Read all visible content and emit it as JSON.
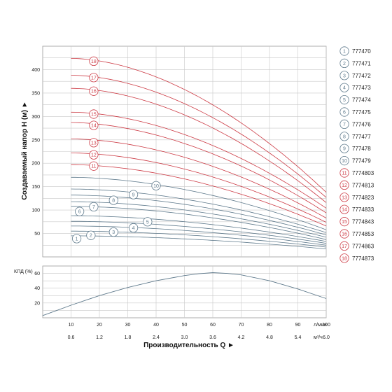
{
  "chart_data": [
    {
      "type": "line",
      "ylabel": "Создаваемый напор H (м) ►",
      "ylim": [
        0,
        450
      ],
      "yticks": [
        50,
        100,
        150,
        200,
        250,
        300,
        350,
        400
      ],
      "xlim": [
        0,
        100
      ],
      "grid": true,
      "legend_position": "right",
      "colors": {
        "low": "#5f7a8c",
        "high": "#cc3a44"
      },
      "series": [
        {
          "name": "777470",
          "label": "1",
          "shutoff": 45,
          "end": 17,
          "label_x": 12,
          "label_y": 39
        },
        {
          "name": "777471",
          "label": "2",
          "shutoff": 55,
          "end": 21,
          "label_x": 17,
          "label_y": 46
        },
        {
          "name": "777472",
          "label": "3",
          "shutoff": 66,
          "end": 25,
          "label_x": 25,
          "label_y": 53
        },
        {
          "name": "777473",
          "label": "4",
          "shutoff": 76,
          "end": 29,
          "label_x": 32,
          "label_y": 62
        },
        {
          "name": "777474",
          "label": "5",
          "shutoff": 88,
          "end": 33,
          "label_x": 37,
          "label_y": 75
        },
        {
          "name": "777475",
          "label": "6",
          "shutoff": 108,
          "end": 37,
          "label_x": 13,
          "label_y": 97
        },
        {
          "name": "777476",
          "label": "7",
          "shutoff": 118,
          "end": 42,
          "label_x": 18,
          "label_y": 107
        },
        {
          "name": "777477",
          "label": "8",
          "shutoff": 132,
          "end": 47,
          "label_x": 25,
          "label_y": 121
        },
        {
          "name": "777478",
          "label": "9",
          "shutoff": 145,
          "end": 52,
          "label_x": 32,
          "label_y": 133
        },
        {
          "name": "777479",
          "label": "10",
          "shutoff": 170,
          "end": 58,
          "label_x": 40,
          "label_y": 152
        },
        {
          "name": "7774803",
          "label": "11",
          "shutoff": 197,
          "end": 66,
          "label_x": 18,
          "label_y": 194
        },
        {
          "name": "7774813",
          "label": "12",
          "shutoff": 222,
          "end": 74,
          "label_x": 18,
          "label_y": 218
        },
        {
          "name": "7774823",
          "label": "13",
          "shutoff": 252,
          "end": 83,
          "label_x": 18,
          "label_y": 244
        },
        {
          "name": "7774833",
          "label": "14",
          "shutoff": 287,
          "end": 94,
          "label_x": 18,
          "label_y": 281
        },
        {
          "name": "7774843",
          "label": "15",
          "shutoff": 309,
          "end": 104,
          "label_x": 18,
          "label_y": 305
        },
        {
          "name": "7774853",
          "label": "16",
          "shutoff": 360,
          "end": 116,
          "label_x": 18,
          "label_y": 354
        },
        {
          "name": "7774863",
          "label": "17",
          "shutoff": 388,
          "end": 127,
          "label_x": 18,
          "label_y": 383
        },
        {
          "name": "7774873",
          "label": "18",
          "shutoff": 424,
          "end": 138,
          "label_x": 18,
          "label_y": 418
        }
      ]
    },
    {
      "type": "line",
      "ylabel": "КПД (%)",
      "ylim": [
        0,
        70
      ],
      "yticks": [
        20,
        40,
        60
      ],
      "xlim": [
        0,
        100
      ],
      "grid": true,
      "series": [
        {
          "x": [
            0,
            5,
            10,
            20,
            30,
            40,
            50,
            55,
            60,
            65,
            70,
            80,
            90,
            100
          ],
          "y": [
            3,
            10,
            17,
            30,
            41,
            50,
            57,
            59.5,
            61,
            60,
            58,
            50,
            39,
            26
          ]
        }
      ]
    }
  ],
  "xaxis": {
    "lpm_unit": "л/мин",
    "m3h_unit": "м³/ч",
    "lpm_ticks": [
      10,
      20,
      30,
      40,
      50,
      60,
      70,
      80,
      90,
      100
    ],
    "m3h_ticks": [
      "0.6",
      "1.2",
      "1.8",
      "2.4",
      "3.0",
      "3.6",
      "4.2",
      "4.8",
      "5.4",
      "6.0"
    ],
    "title": "Производительность Q ►"
  }
}
